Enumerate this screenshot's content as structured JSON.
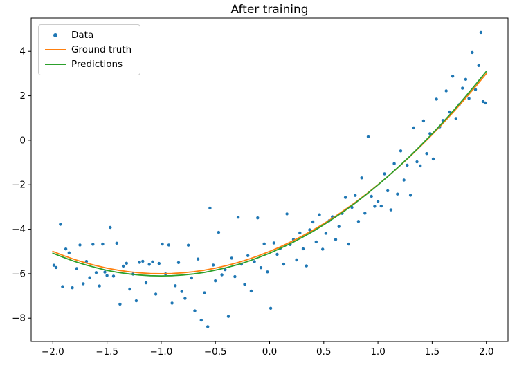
{
  "chart_data": {
    "type": "scatter",
    "title": "After training",
    "xlabel": "",
    "ylabel": "",
    "xlim": [
      -2.2,
      2.2
    ],
    "ylim": [
      -9.05,
      5.5
    ],
    "grid": false,
    "xticks": {
      "values": [
        -2.0,
        -1.5,
        -1.0,
        -0.5,
        0.0,
        0.5,
        1.0,
        1.5,
        2.0
      ],
      "labels": [
        "−2.0",
        "−1.5",
        "−1.0",
        "−0.5",
        "0.0",
        "0.5",
        "1.0",
        "1.5",
        "2.0"
      ]
    },
    "yticks": {
      "values": [
        4,
        2,
        0,
        -2,
        -4,
        -6,
        -8
      ],
      "labels": [
        "4",
        "2",
        "0",
        "−2",
        "−4",
        "−6",
        "−8"
      ]
    },
    "legend": {
      "position": "upper-left",
      "items": [
        {
          "label": "Data",
          "color": "#1f77b4",
          "marker": "dot"
        },
        {
          "label": "Ground truth",
          "color": "#ff7f0e",
          "marker": "line"
        },
        {
          "label": "Predictions",
          "color": "#2ca02c",
          "marker": "line"
        }
      ]
    },
    "series": [
      {
        "name": "Data",
        "type": "scatter",
        "color": "#1f77b4",
        "points": [
          [
            -1.99,
            -5.62
          ],
          [
            -1.97,
            -5.72
          ],
          [
            -1.93,
            -3.78
          ],
          [
            -1.91,
            -6.58
          ],
          [
            -1.88,
            -4.89
          ],
          [
            -1.85,
            -5.06
          ],
          [
            -1.82,
            -6.63
          ],
          [
            -1.78,
            -5.77
          ],
          [
            -1.75,
            -4.71
          ],
          [
            -1.72,
            -6.45
          ],
          [
            -1.69,
            -5.45
          ],
          [
            -1.66,
            -6.18
          ],
          [
            -1.63,
            -4.68
          ],
          [
            -1.6,
            -5.95
          ],
          [
            -1.57,
            -6.55
          ],
          [
            -1.54,
            -4.67
          ],
          [
            -1.52,
            -5.93
          ],
          [
            -1.5,
            -6.08
          ],
          [
            -1.47,
            -3.92
          ],
          [
            -1.44,
            -6.11
          ],
          [
            -1.41,
            -4.63
          ],
          [
            -1.38,
            -7.37
          ],
          [
            -1.35,
            -5.66
          ],
          [
            -1.32,
            -5.53
          ],
          [
            -1.29,
            -6.69
          ],
          [
            -1.26,
            -6.02
          ],
          [
            -1.23,
            -7.22
          ],
          [
            -1.2,
            -5.49
          ],
          [
            -1.17,
            -5.44
          ],
          [
            -1.14,
            -6.41
          ],
          [
            -1.11,
            -5.58
          ],
          [
            -1.08,
            -5.47
          ],
          [
            -1.05,
            -6.92
          ],
          [
            -1.02,
            -5.54
          ],
          [
            -0.99,
            -4.67
          ],
          [
            -0.96,
            -6.01
          ],
          [
            -0.93,
            -4.71
          ],
          [
            -0.9,
            -7.32
          ],
          [
            -0.87,
            -6.54
          ],
          [
            -0.84,
            -5.5
          ],
          [
            -0.81,
            -6.8
          ],
          [
            -0.78,
            -7.11
          ],
          [
            -0.75,
            -4.72
          ],
          [
            -0.72,
            -6.19
          ],
          [
            -0.69,
            -7.67
          ],
          [
            -0.66,
            -5.34
          ],
          [
            -0.63,
            -8.09
          ],
          [
            -0.6,
            -6.86
          ],
          [
            -0.57,
            -8.38
          ],
          [
            -0.55,
            -3.05
          ],
          [
            -0.52,
            -5.61
          ],
          [
            -0.5,
            -6.32
          ],
          [
            -0.47,
            -4.14
          ],
          [
            -0.44,
            -6.05
          ],
          [
            -0.41,
            -5.82
          ],
          [
            -0.38,
            -7.92
          ],
          [
            -0.35,
            -5.3
          ],
          [
            -0.32,
            -6.13
          ],
          [
            -0.29,
            -3.46
          ],
          [
            -0.26,
            -5.57
          ],
          [
            -0.23,
            -6.48
          ],
          [
            -0.2,
            -5.19
          ],
          [
            -0.17,
            -6.78
          ],
          [
            -0.14,
            -5.46
          ],
          [
            -0.11,
            -3.49
          ],
          [
            -0.08,
            -5.73
          ],
          [
            -0.05,
            -4.66
          ],
          [
            -0.02,
            -5.92
          ],
          [
            0.01,
            -7.55
          ],
          [
            0.04,
            -4.62
          ],
          [
            0.07,
            -5.13
          ],
          [
            0.1,
            -4.85
          ],
          [
            0.13,
            -5.57
          ],
          [
            0.16,
            -3.31
          ],
          [
            0.19,
            -4.69
          ],
          [
            0.22,
            -4.46
          ],
          [
            0.25,
            -5.38
          ],
          [
            0.28,
            -4.17
          ],
          [
            0.31,
            -4.88
          ],
          [
            0.34,
            -5.65
          ],
          [
            0.37,
            -4.03
          ],
          [
            0.4,
            -3.67
          ],
          [
            0.43,
            -4.57
          ],
          [
            0.46,
            -3.35
          ],
          [
            0.49,
            -4.9
          ],
          [
            0.52,
            -4.18
          ],
          [
            0.55,
            -3.62
          ],
          [
            0.58,
            -3.44
          ],
          [
            0.61,
            -4.46
          ],
          [
            0.64,
            -3.88
          ],
          [
            0.67,
            -3.29
          ],
          [
            0.7,
            -2.57
          ],
          [
            0.73,
            -4.67
          ],
          [
            0.76,
            -3.02
          ],
          [
            0.79,
            -2.48
          ],
          [
            0.82,
            -3.65
          ],
          [
            0.85,
            -1.69
          ],
          [
            0.88,
            -3.28
          ],
          [
            0.91,
            0.16
          ],
          [
            0.94,
            -2.52
          ],
          [
            0.97,
            -2.97
          ],
          [
            1.0,
            -2.75
          ],
          [
            1.03,
            -2.96
          ],
          [
            1.06,
            -1.51
          ],
          [
            1.09,
            -2.27
          ],
          [
            1.12,
            -3.13
          ],
          [
            1.15,
            -1.05
          ],
          [
            1.18,
            -2.42
          ],
          [
            1.21,
            -0.48
          ],
          [
            1.24,
            -1.79
          ],
          [
            1.27,
            -1.12
          ],
          [
            1.3,
            -2.47
          ],
          [
            1.33,
            0.56
          ],
          [
            1.36,
            -0.97
          ],
          [
            1.39,
            -1.15
          ],
          [
            1.42,
            0.87
          ],
          [
            1.45,
            -0.6
          ],
          [
            1.48,
            0.3
          ],
          [
            1.51,
            -0.84
          ],
          [
            1.54,
            1.85
          ],
          [
            1.57,
            0.6
          ],
          [
            1.6,
            0.89
          ],
          [
            1.63,
            2.22
          ],
          [
            1.66,
            1.27
          ],
          [
            1.69,
            2.88
          ],
          [
            1.72,
            0.98
          ],
          [
            1.75,
            1.6
          ],
          [
            1.78,
            2.34
          ],
          [
            1.81,
            2.74
          ],
          [
            1.84,
            1.88
          ],
          [
            1.87,
            3.95
          ],
          [
            1.9,
            2.28
          ],
          [
            1.93,
            3.36
          ],
          [
            1.95,
            4.85
          ],
          [
            1.97,
            1.74
          ],
          [
            1.99,
            1.68
          ]
        ]
      },
      {
        "name": "Ground truth",
        "type": "line",
        "color": "#ff7f0e",
        "formula": "y = x^2 + 2x - 5",
        "x": [
          -2,
          -1.9,
          -1.8,
          -1.7,
          -1.6,
          -1.5,
          -1.4,
          -1.3,
          -1.2,
          -1.1,
          -1,
          -0.9,
          -0.8,
          -0.7,
          -0.6,
          -0.5,
          -0.4,
          -0.3,
          -0.2,
          -0.1,
          0,
          0.1,
          0.2,
          0.3,
          0.4,
          0.5,
          0.6,
          0.7,
          0.8,
          0.9,
          1,
          1.1,
          1.2,
          1.3,
          1.4,
          1.5,
          1.6,
          1.7,
          1.8,
          1.9,
          2
        ],
        "y": [
          -5.0,
          -5.19,
          -5.36,
          -5.51,
          -5.64,
          -5.75,
          -5.84,
          -5.91,
          -5.96,
          -5.99,
          -6.0,
          -5.99,
          -5.96,
          -5.91,
          -5.84,
          -5.75,
          -5.64,
          -5.51,
          -5.36,
          -5.19,
          -5.0,
          -4.79,
          -4.56,
          -4.31,
          -4.04,
          -3.75,
          -3.44,
          -3.11,
          -2.76,
          -2.39,
          -2.0,
          -1.59,
          -1.16,
          -0.71,
          -0.24,
          0.25,
          0.76,
          1.29,
          1.84,
          2.41,
          3.0
        ]
      },
      {
        "name": "Predictions",
        "type": "line",
        "color": "#2ca02c",
        "x": [
          -2,
          -1.9,
          -1.8,
          -1.7,
          -1.6,
          -1.5,
          -1.4,
          -1.3,
          -1.2,
          -1.1,
          -1,
          -0.9,
          -0.8,
          -0.7,
          -0.6,
          -0.5,
          -0.4,
          -0.3,
          -0.2,
          -0.1,
          0,
          0.1,
          0.2,
          0.3,
          0.4,
          0.5,
          0.6,
          0.7,
          0.8,
          0.9,
          1,
          1.1,
          1.2,
          1.3,
          1.4,
          1.5,
          1.6,
          1.7,
          1.8,
          1.9,
          2
        ],
        "y": [
          -5.08,
          -5.27,
          -5.45,
          -5.6,
          -5.73,
          -5.85,
          -5.94,
          -6.01,
          -6.06,
          -6.09,
          -6.1,
          -6.09,
          -6.06,
          -6.01,
          -5.94,
          -5.84,
          -5.73,
          -5.6,
          -5.45,
          -5.27,
          -5.08,
          -4.86,
          -4.63,
          -4.37,
          -4.1,
          -3.8,
          -3.48,
          -3.15,
          -2.79,
          -2.41,
          -2.01,
          -1.59,
          -1.15,
          -0.69,
          -0.21,
          0.29,
          0.81,
          1.35,
          1.92,
          2.5,
          3.1
        ]
      }
    ]
  }
}
